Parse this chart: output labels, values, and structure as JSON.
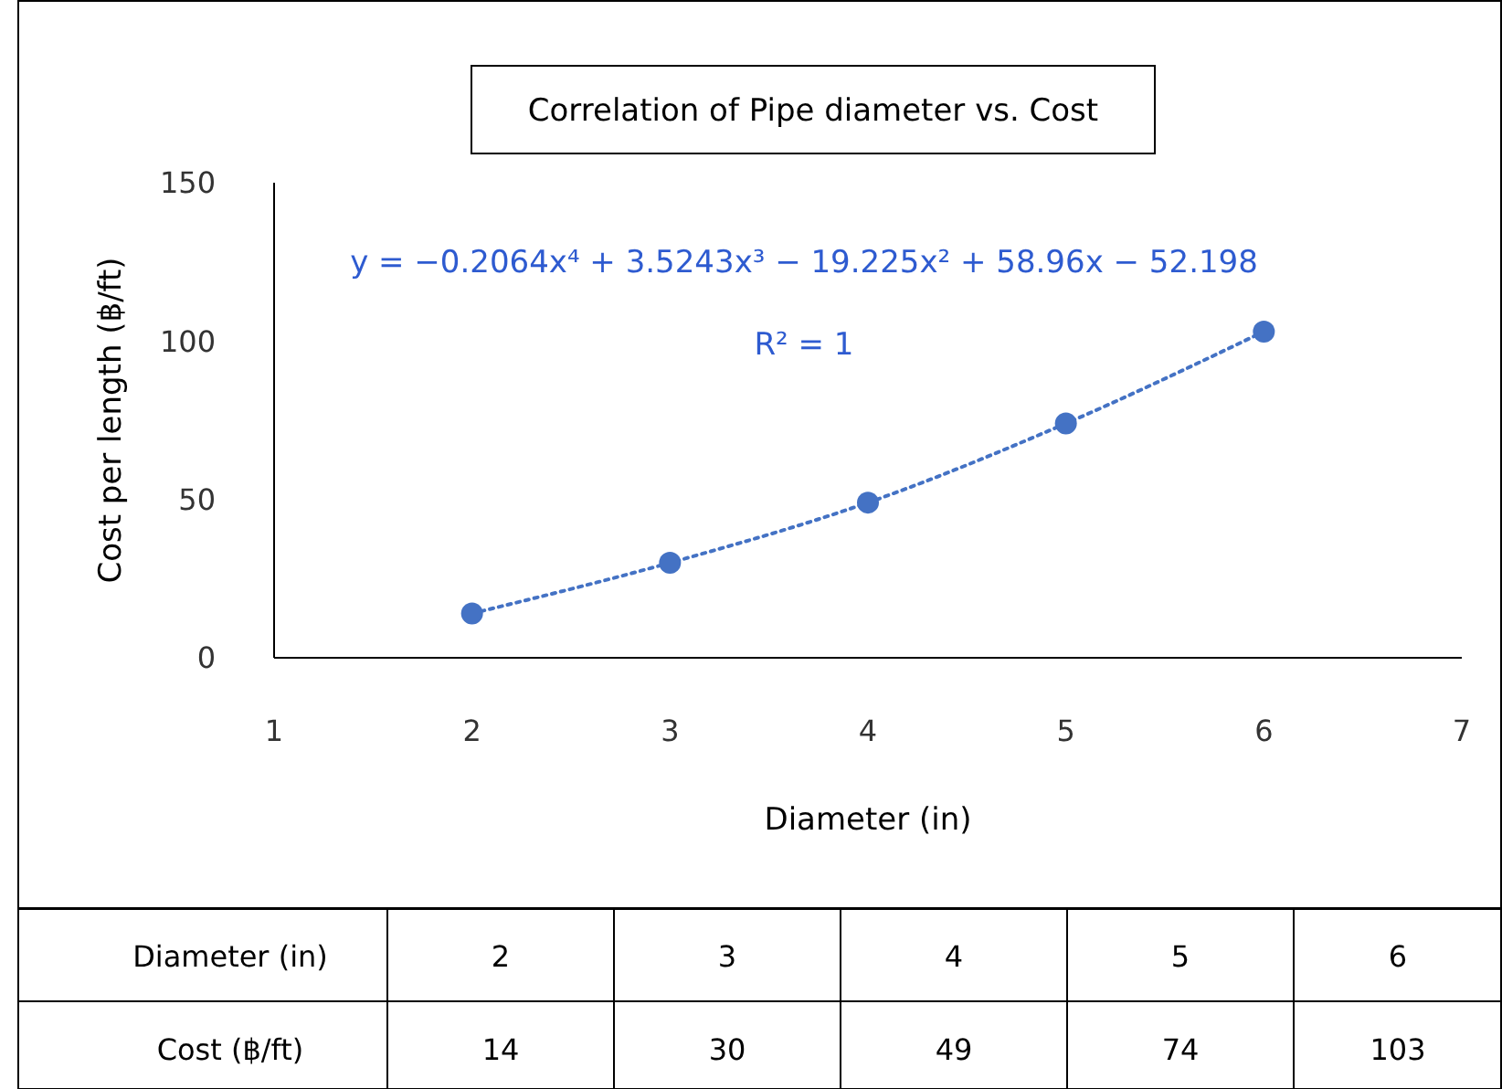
{
  "chart_data": {
    "type": "scatter",
    "title": "Correlation of Pipe diameter vs. Cost",
    "xlabel": "Diameter (in)",
    "ylabel": "Cost  per length (฿/ft)",
    "xlim": [
      1,
      7
    ],
    "xticks": [
      1,
      2,
      3,
      4,
      5,
      6,
      7
    ],
    "ylim": [
      0,
      150
    ],
    "yticks": [
      0,
      50,
      100,
      150
    ],
    "series": [
      {
        "color": "#4472c4",
        "marker": "circle",
        "x": [
          2,
          3,
          4,
          5,
          6
        ],
        "values": [
          14,
          30,
          49,
          74,
          103
        ]
      },
      {
        "type": "line",
        "color": "#4472c4",
        "line_style": "dotted",
        "x": [
          2,
          3,
          4,
          5,
          6
        ],
        "values": [
          14,
          30,
          49,
          74,
          103
        ]
      }
    ],
    "annotations": [
      "y = −0.2064x⁴ + 3.5243x³ − 19.225x² + 58.96x − 52.198",
      "R² = 1",
      "Diameter (in)",
      "2",
      "3",
      "4",
      "5",
      "6",
      "Cost (฿/ft)",
      "14",
      "30",
      "49",
      "74",
      "103"
    ]
  }
}
